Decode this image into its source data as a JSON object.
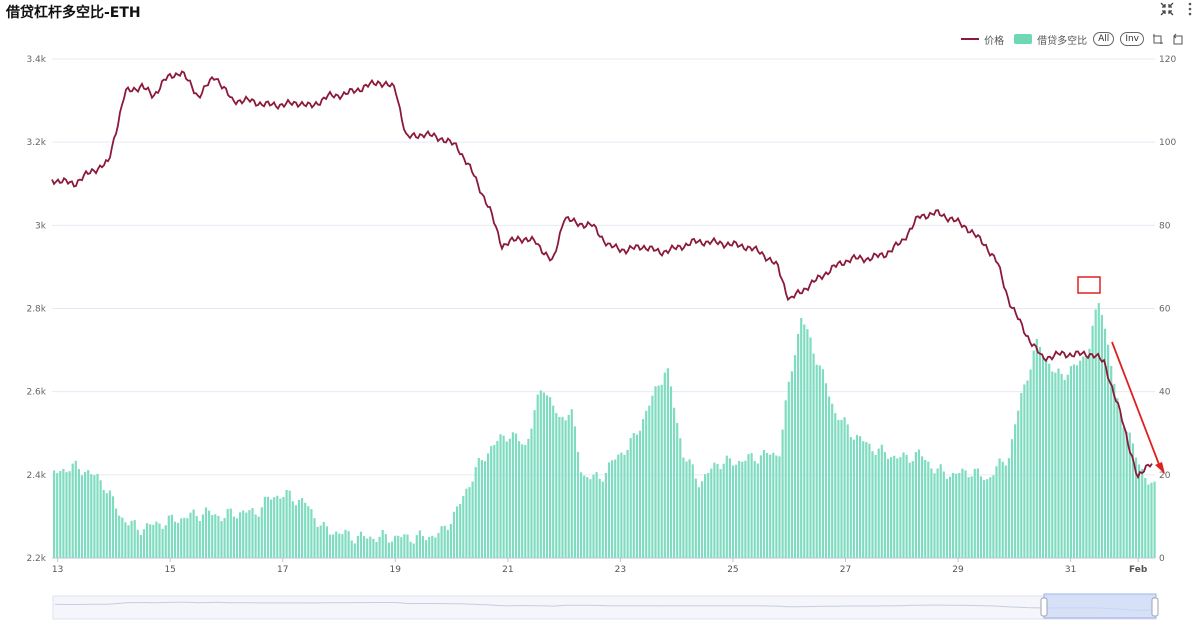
{
  "header": {
    "title": "借贷杠杆多空比-ETH"
  },
  "toolbar": {
    "collapse_icon": "collapse-arrows-icon",
    "menu_icon": "vertical-dots-icon"
  },
  "legend": {
    "price_label": "价格",
    "ratio_label": "借贷多空比",
    "all_label": "All",
    "inv_label": "Inv",
    "tool_icons": [
      "zoom-area-icon",
      "zoom-reset-icon"
    ]
  },
  "colors": {
    "price_line": "#8b1a3a",
    "ratio_bars": "#7fdcc0",
    "annotation": "#e02020",
    "grid": "#e6e9f5"
  },
  "chart_data": {
    "type": "bar+line",
    "x_ticks": [
      "13",
      "15",
      "17",
      "19",
      "21",
      "23",
      "25",
      "27",
      "29",
      "31",
      "Feb"
    ],
    "y_left": {
      "ticks": [
        "2.2k",
        "2.4k",
        "2.6k",
        "2.8k",
        "3k",
        "3.2k",
        "3.4k"
      ],
      "range": [
        2200,
        3400
      ]
    },
    "y_right": {
      "ticks": [
        "0",
        "20",
        "40",
        "60",
        "80",
        "100",
        "120"
      ],
      "range": [
        0,
        120
      ]
    },
    "series": [
      {
        "name": "价格",
        "type": "line",
        "axis": "left",
        "x": [
          12.9,
          13.3,
          13.6,
          13.9,
          14.2,
          14.5,
          14.7,
          14.9,
          15.2,
          15.5,
          15.8,
          16.1,
          16.4,
          16.7,
          17.0,
          17.3,
          17.5,
          17.8,
          18.1,
          18.4,
          18.7,
          19.0,
          19.2,
          19.5,
          19.8,
          20.1,
          20.4,
          20.7,
          20.9,
          21.2,
          21.5,
          21.8,
          22.0,
          22.2,
          22.5,
          22.8,
          23.1,
          23.4,
          23.7,
          24.0,
          24.3,
          24.6,
          24.9,
          25.2,
          25.5,
          25.8,
          26.0,
          26.2,
          26.5,
          26.8,
          27.1,
          27.4,
          27.7,
          28.0,
          28.3,
          28.6,
          28.9,
          29.2,
          29.5,
          29.7,
          29.9,
          30.2,
          30.5,
          30.8,
          31.1,
          31.4,
          31.6,
          31.9,
          32.2,
          32.4
        ],
        "values": [
          3110,
          3100,
          3130,
          3150,
          3320,
          3335,
          3310,
          3350,
          3370,
          3310,
          3360,
          3300,
          3300,
          3290,
          3290,
          3295,
          3285,
          3310,
          3315,
          3330,
          3345,
          3330,
          3210,
          3220,
          3210,
          3190,
          3120,
          3030,
          2950,
          2970,
          2960,
          2910,
          3020,
          3005,
          3000,
          2950,
          2940,
          2950,
          2935,
          2945,
          2960,
          2960,
          2955,
          2950,
          2935,
          2900,
          2820,
          2840,
          2870,
          2900,
          2920,
          2920,
          2930,
          2960,
          3020,
          3030,
          3015,
          2990,
          2950,
          2910,
          2820,
          2740,
          2680,
          2690,
          2690,
          2690,
          2670,
          2540,
          2390,
          2430
        ]
      },
      {
        "name": "借贷多空比",
        "type": "bar",
        "axis": "right",
        "x": [
          12.9,
          13.2,
          13.5,
          13.8,
          14.1,
          14.4,
          14.7,
          15.0,
          15.3,
          15.6,
          15.9,
          16.2,
          16.5,
          16.8,
          17.1,
          17.4,
          17.7,
          18.0,
          18.3,
          18.6,
          18.9,
          19.2,
          19.5,
          19.8,
          20.1,
          20.4,
          20.7,
          21.0,
          21.3,
          21.6,
          21.9,
          22.1,
          22.3,
          22.6,
          22.9,
          23.2,
          23.5,
          23.8,
          24.1,
          24.4,
          24.7,
          25.0,
          25.3,
          25.6,
          25.8,
          26.0,
          26.2,
          26.5,
          26.8,
          27.1,
          27.4,
          27.7,
          28.0,
          28.3,
          28.6,
          28.9,
          29.2,
          29.5,
          29.7,
          29.9,
          30.1,
          30.4,
          30.7,
          31.0,
          31.3,
          31.5,
          31.8,
          32.1,
          32.4
        ],
        "values": [
          20,
          22,
          21,
          18,
          10,
          7,
          8,
          9,
          10,
          11,
          10,
          11,
          11,
          15,
          15,
          13,
          7,
          6,
          5,
          5,
          5,
          5,
          5,
          6,
          12,
          21,
          27,
          30,
          27,
          42,
          33,
          36,
          20,
          19,
          24,
          28,
          37,
          46,
          25,
          18,
          23,
          23,
          24,
          25,
          25,
          44,
          58,
          47,
          35,
          30,
          27,
          25,
          24,
          25,
          21,
          20,
          21,
          19,
          22,
          25,
          39,
          52,
          44,
          45,
          50,
          63,
          38,
          26,
          17
        ]
      }
    ],
    "annotations": [
      {
        "type": "box",
        "around": "peak bar near 31.5"
      },
      {
        "type": "arrow",
        "direction": "down-right",
        "meaning": "declining trend"
      }
    ]
  }
}
